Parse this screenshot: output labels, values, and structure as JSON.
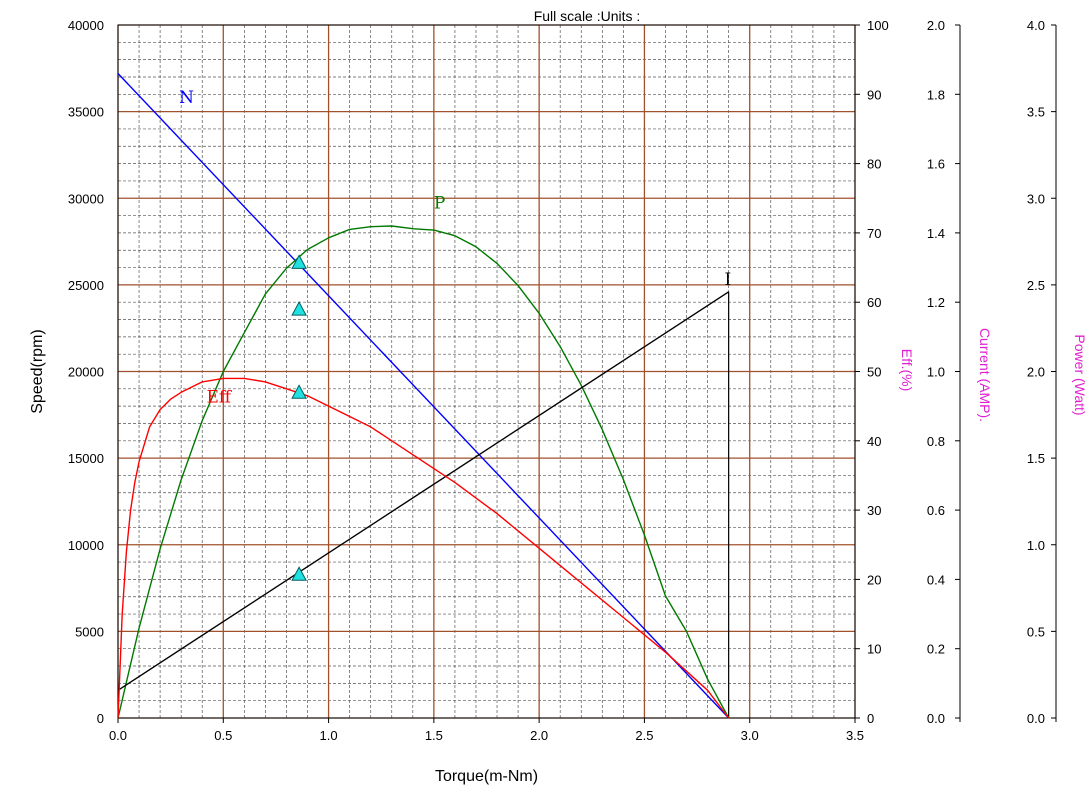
{
  "header": {
    "text": "Full scale :Units :"
  },
  "chart_data": {
    "type": "line",
    "xlabel": "Torque(m-Nm)",
    "xlim": [
      0,
      3.5
    ],
    "xticks": [
      0.0,
      0.5,
      1.0,
      1.5,
      2.0,
      2.5,
      3.0,
      3.5
    ],
    "xtick_labels": [
      "0.0",
      "0.5",
      "1.0",
      "1.5",
      "2.0",
      "2.5",
      "3.0",
      "3.5"
    ],
    "grid": true,
    "axes": {
      "speed": {
        "label": "Speed(rpm)",
        "lim": [
          0,
          40000
        ],
        "ticks": [
          0,
          5000,
          10000,
          15000,
          20000,
          25000,
          30000,
          35000,
          40000
        ],
        "tick_labels": [
          "0",
          "5000",
          "10000",
          "15000",
          "20000",
          "25000",
          "30000",
          "35000",
          "40000"
        ]
      },
      "eff": {
        "label": "Eff.(%)",
        "lim": [
          0,
          100
        ],
        "ticks": [
          0,
          10,
          20,
          30,
          40,
          50,
          60,
          70,
          80,
          90,
          100
        ],
        "tick_labels": [
          "0",
          "10",
          "20",
          "30",
          "40",
          "50",
          "60",
          "70",
          "80",
          "90",
          "100"
        ]
      },
      "current": {
        "label": "Current (AMP).",
        "lim": [
          0,
          2.0
        ],
        "ticks": [
          0.0,
          0.2,
          0.4,
          0.6,
          0.8,
          1.0,
          1.2,
          1.4,
          1.6,
          1.8,
          2.0
        ],
        "tick_labels": [
          "0.0",
          "0.2",
          "0.4",
          "0.6",
          "0.8",
          "1.0",
          "1.2",
          "1.4",
          "1.6",
          "1.8",
          "2.0"
        ]
      },
      "power": {
        "label": "Power (Watt)",
        "lim": [
          0,
          4.0
        ],
        "ticks": [
          0.0,
          0.5,
          1.0,
          1.5,
          2.0,
          2.5,
          3.0,
          3.5,
          4.0
        ],
        "tick_labels": [
          "0.0",
          "0.5",
          "1.0",
          "1.5",
          "2.0",
          "2.5",
          "3.0",
          "3.5",
          "4.0"
        ]
      }
    },
    "series": [
      {
        "name": "N",
        "axis": "speed",
        "color": "#0000ff",
        "x": [
          0,
          2.9
        ],
        "y": [
          37200,
          0
        ],
        "label_at": [
          0.29,
          35500
        ]
      },
      {
        "name": "P",
        "axis": "eff",
        "color": "#007a00",
        "x": [
          0,
          0.1,
          0.2,
          0.3,
          0.4,
          0.5,
          0.6,
          0.7,
          0.8,
          0.9,
          1.0,
          1.1,
          1.2,
          1.3,
          1.4,
          1.45,
          1.5,
          1.6,
          1.7,
          1.8,
          1.9,
          2.0,
          2.1,
          2.2,
          2.3,
          2.4,
          2.5,
          2.6,
          2.7,
          2.8,
          2.9
        ],
        "y": [
          0,
          13.0,
          24.4,
          34.4,
          42.9,
          50.0,
          55.6,
          61.2,
          64.9,
          67.6,
          69.3,
          70.5,
          70.9,
          71.0,
          70.6,
          70.5,
          70.4,
          69.6,
          68.0,
          65.6,
          62.4,
          58.4,
          53.6,
          48.0,
          41.6,
          34.4,
          26.4,
          17.6,
          12.5,
          5.6,
          0
        ],
        "label_at": [
          1.5,
          73.5
        ]
      },
      {
        "name": "I",
        "axis": "current",
        "color": "#000000",
        "x": [
          0,
          2.9
        ],
        "y": [
          0.08,
          1.23
        ],
        "label_at": [
          2.88,
          1.25
        ]
      },
      {
        "name": "Eff",
        "axis": "eff",
        "color": "#ff0000",
        "x": [
          0,
          0.02,
          0.04,
          0.06,
          0.08,
          0.1,
          0.15,
          0.2,
          0.25,
          0.3,
          0.4,
          0.5,
          0.6,
          0.7,
          0.8,
          0.9,
          1.0,
          1.2,
          1.4,
          1.6,
          1.8,
          2.0,
          2.2,
          2.4,
          2.6,
          2.8,
          2.9
        ],
        "y": [
          0,
          15,
          24,
          30,
          34,
          37,
          42,
          44.5,
          46,
          47,
          48.5,
          49,
          49,
          48.5,
          47.5,
          46.5,
          45,
          42,
          38,
          34,
          29.5,
          24.5,
          19.5,
          14.5,
          9.5,
          4,
          0
        ],
        "label_at": [
          0.42,
          45.5
        ]
      }
    ],
    "markers": [
      {
        "axis": "speed",
        "x": 0.86,
        "y": 26300
      },
      {
        "axis": "eff",
        "x": 0.86,
        "y": 59
      },
      {
        "axis": "eff",
        "x": 0.86,
        "y": 47
      },
      {
        "axis": "current",
        "x": 0.86,
        "y": 0.415
      }
    ],
    "stall_line": {
      "x": 2.9,
      "axis": "current",
      "y": [
        0,
        1.23
      ]
    }
  }
}
